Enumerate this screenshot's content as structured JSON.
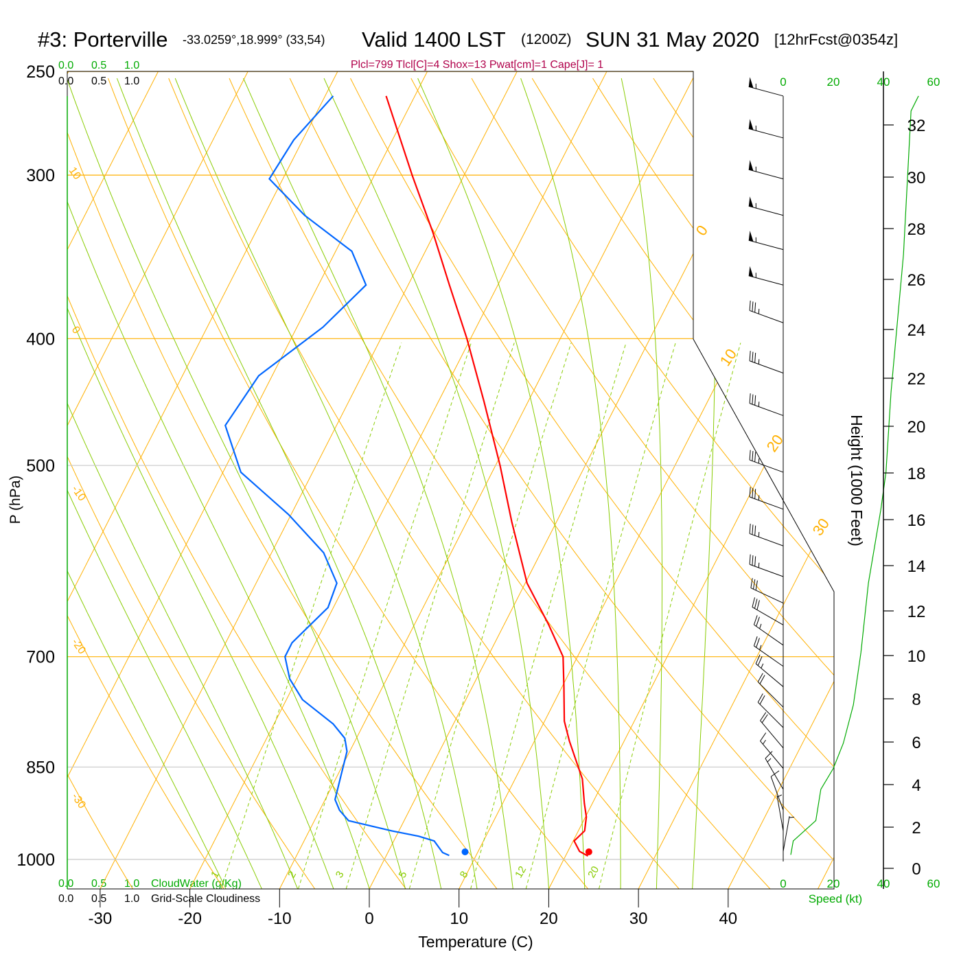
{
  "title": {
    "station": "#3: Porterville",
    "coords": "-33.0259°,18.999° (33,54)",
    "valid": "Valid 1400 LST",
    "zulu": "(1200Z)",
    "date": "SUN 31 May 2020",
    "forecast": "[12hrFcst@0354z]"
  },
  "params": "Plcl=799 Tlcl[C]=4 Shox=13 Pwat[cm]=1 Cape[J]= 1",
  "colors": {
    "temp": "#ff0000",
    "dewpoint": "#0066ff",
    "isotherm": "#ffb000",
    "moist": "#88cc00",
    "speed": "#00aa00",
    "params": "#b0004a"
  },
  "cloud_scale_top": {
    "green": [
      "0.0",
      "0.5",
      "1.0"
    ],
    "black": [
      "0.0",
      "0.5",
      "1.0"
    ]
  },
  "cloud_scale_bottom": {
    "green": [
      "0.0",
      "0.5",
      "1.0"
    ],
    "green_label": "CloudWater (g/Kg)",
    "black": [
      "0.0",
      "0.5",
      "1.0"
    ],
    "black_label": "Grid-Scale Cloudiness"
  },
  "speed_axis": {
    "ticks": [
      "0",
      "20",
      "40",
      "60"
    ],
    "label": "Speed (kt)"
  },
  "height_axis": {
    "label": "Height (1000 Feet)",
    "ticks": [
      "0",
      "2",
      "4",
      "6",
      "8",
      "10",
      "12",
      "14",
      "16",
      "18",
      "20",
      "22",
      "24",
      "26",
      "28",
      "30",
      "32"
    ]
  },
  "chart_data": {
    "type": "line",
    "subtype": "skew-t log-p",
    "xlabel": "Temperature (C)",
    "ylabel": "P (hPa)",
    "pressure_ticks": [
      250,
      300,
      400,
      500,
      700,
      850,
      1000
    ],
    "temperature_ticks": [
      -30,
      -20,
      -10,
      0,
      10,
      20,
      30,
      40
    ],
    "ylim_hPa": [
      1053,
      250
    ],
    "isotherm_labels": [
      "0",
      "10",
      "20",
      "30"
    ],
    "dry_adiabat_labels": [
      "10",
      "0",
      "-10",
      "-20",
      "-30"
    ],
    "mixing_ratio_labels": [
      "1",
      "2",
      "3",
      "5",
      "8",
      "12",
      "20"
    ],
    "series": [
      {
        "name": "Temperature",
        "points_p_T": [
          [
            261,
            -43.2
          ],
          [
            300,
            -35.8
          ],
          [
            332,
            -30.2
          ],
          [
            364,
            -25.4
          ],
          [
            400,
            -20.4
          ],
          [
            447,
            -14.9
          ],
          [
            500,
            -9.5
          ],
          [
            552,
            -5.0
          ],
          [
            615,
            0.2
          ],
          [
            662,
            5.0
          ],
          [
            700,
            8.4
          ],
          [
            738,
            10.2
          ],
          [
            784,
            12.2
          ],
          [
            812,
            13.9
          ],
          [
            868,
            17.5
          ],
          [
            906,
            19.1
          ],
          [
            928,
            20.1
          ],
          [
            951,
            20.7
          ],
          [
            968,
            20.1
          ],
          [
            986,
            21.3
          ],
          [
            994,
            22.5
          ]
        ],
        "surface": [
          994,
          22.6
        ]
      },
      {
        "name": "Dewpoint",
        "points_p_T": [
          [
            261,
            -49.1
          ],
          [
            282,
            -51.0
          ],
          [
            302,
            -51.5
          ],
          [
            322,
            -45.5
          ],
          [
            343,
            -38.2
          ],
          [
            364,
            -34.7
          ],
          [
            392,
            -37.1
          ],
          [
            427,
            -41.5
          ],
          [
            466,
            -42.4
          ],
          [
            506,
            -38.0
          ],
          [
            545,
            -30.3
          ],
          [
            583,
            -24.2
          ],
          [
            615,
            -21.0
          ],
          [
            642,
            -20.6
          ],
          [
            683,
            -22.6
          ],
          [
            700,
            -22.6
          ],
          [
            728,
            -20.8
          ],
          [
            755,
            -18.2
          ],
          [
            788,
            -13.4
          ],
          [
            808,
            -11.3
          ],
          [
            827,
            -10.3
          ],
          [
            863,
            -9.6
          ],
          [
            900,
            -8.9
          ],
          [
            917,
            -7.8
          ],
          [
            934,
            -6.2
          ],
          [
            951,
            -0.8
          ],
          [
            960,
            2.5
          ],
          [
            968,
            4.5
          ],
          [
            988,
            6.1
          ],
          [
            993,
            7.0
          ]
        ],
        "surface": [
          994,
          8.8
        ]
      },
      {
        "name": "Wind speed (kt)",
        "points_p_kt": [
          [
            992,
            3
          ],
          [
            968,
            4
          ],
          [
            934,
            13
          ],
          [
            884,
            15
          ],
          [
            852,
            20
          ],
          [
            815,
            24
          ],
          [
            762,
            28
          ],
          [
            695,
            31
          ],
          [
            615,
            34
          ],
          [
            540,
            39
          ],
          [
            506,
            41
          ],
          [
            440,
            43
          ],
          [
            345,
            48
          ],
          [
            268,
            51
          ],
          [
            261,
            54
          ]
        ]
      }
    ],
    "wind_barbs_p_kt_dir": [
      [
        261,
        55,
        285
      ],
      [
        281,
        55,
        285
      ],
      [
        302,
        55,
        285
      ],
      [
        322,
        55,
        285
      ],
      [
        342,
        55,
        285
      ],
      [
        364,
        55,
        285
      ],
      [
        389,
        35,
        290
      ],
      [
        425,
        35,
        290
      ],
      [
        458,
        35,
        290
      ],
      [
        506,
        35,
        290
      ],
      [
        540,
        35,
        290
      ],
      [
        576,
        35,
        290
      ],
      [
        608,
        35,
        290
      ],
      [
        637,
        30,
        295
      ],
      [
        662,
        30,
        300
      ],
      [
        686,
        25,
        305
      ],
      [
        712,
        25,
        305
      ],
      [
        738,
        25,
        310
      ],
      [
        765,
        20,
        315
      ],
      [
        793,
        20,
        315
      ],
      [
        822,
        20,
        320
      ],
      [
        852,
        15,
        320
      ],
      [
        884,
        15,
        330
      ],
      [
        917,
        10,
        340
      ],
      [
        951,
        5,
        350
      ],
      [
        986,
        5,
        10
      ]
    ]
  }
}
